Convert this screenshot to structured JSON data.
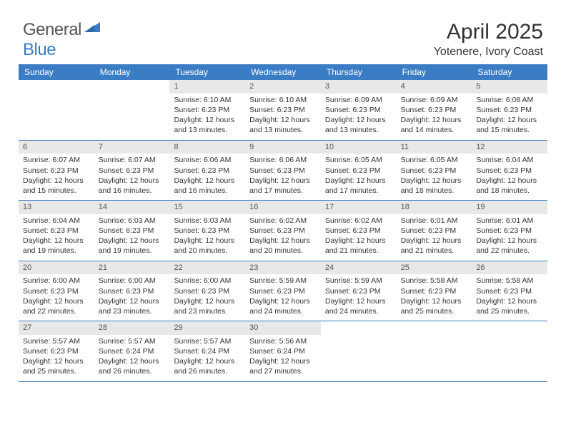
{
  "logo": {
    "general": "General",
    "blue": "Blue"
  },
  "title": "April 2025",
  "location": "Yotenere, Ivory Coast",
  "colors": {
    "header_bar": "#3b7dc4",
    "daynum_bg": "#e8e8e8",
    "text": "#333333",
    "white": "#ffffff"
  },
  "weekdays": [
    "Sunday",
    "Monday",
    "Tuesday",
    "Wednesday",
    "Thursday",
    "Friday",
    "Saturday"
  ],
  "weeks": [
    [
      {
        "n": "",
        "sr": "",
        "ss": "",
        "dl": ""
      },
      {
        "n": "",
        "sr": "",
        "ss": "",
        "dl": ""
      },
      {
        "n": "1",
        "sr": "Sunrise: 6:10 AM",
        "ss": "Sunset: 6:23 PM",
        "dl": "Daylight: 12 hours and 13 minutes."
      },
      {
        "n": "2",
        "sr": "Sunrise: 6:10 AM",
        "ss": "Sunset: 6:23 PM",
        "dl": "Daylight: 12 hours and 13 minutes."
      },
      {
        "n": "3",
        "sr": "Sunrise: 6:09 AM",
        "ss": "Sunset: 6:23 PM",
        "dl": "Daylight: 12 hours and 13 minutes."
      },
      {
        "n": "4",
        "sr": "Sunrise: 6:09 AM",
        "ss": "Sunset: 6:23 PM",
        "dl": "Daylight: 12 hours and 14 minutes."
      },
      {
        "n": "5",
        "sr": "Sunrise: 6:08 AM",
        "ss": "Sunset: 6:23 PM",
        "dl": "Daylight: 12 hours and 15 minutes."
      }
    ],
    [
      {
        "n": "6",
        "sr": "Sunrise: 6:07 AM",
        "ss": "Sunset: 6:23 PM",
        "dl": "Daylight: 12 hours and 15 minutes."
      },
      {
        "n": "7",
        "sr": "Sunrise: 6:07 AM",
        "ss": "Sunset: 6:23 PM",
        "dl": "Daylight: 12 hours and 16 minutes."
      },
      {
        "n": "8",
        "sr": "Sunrise: 6:06 AM",
        "ss": "Sunset: 6:23 PM",
        "dl": "Daylight: 12 hours and 16 minutes."
      },
      {
        "n": "9",
        "sr": "Sunrise: 6:06 AM",
        "ss": "Sunset: 6:23 PM",
        "dl": "Daylight: 12 hours and 17 minutes."
      },
      {
        "n": "10",
        "sr": "Sunrise: 6:05 AM",
        "ss": "Sunset: 6:23 PM",
        "dl": "Daylight: 12 hours and 17 minutes."
      },
      {
        "n": "11",
        "sr": "Sunrise: 6:05 AM",
        "ss": "Sunset: 6:23 PM",
        "dl": "Daylight: 12 hours and 18 minutes."
      },
      {
        "n": "12",
        "sr": "Sunrise: 6:04 AM",
        "ss": "Sunset: 6:23 PM",
        "dl": "Daylight: 12 hours and 18 minutes."
      }
    ],
    [
      {
        "n": "13",
        "sr": "Sunrise: 6:04 AM",
        "ss": "Sunset: 6:23 PM",
        "dl": "Daylight: 12 hours and 19 minutes."
      },
      {
        "n": "14",
        "sr": "Sunrise: 6:03 AM",
        "ss": "Sunset: 6:23 PM",
        "dl": "Daylight: 12 hours and 19 minutes."
      },
      {
        "n": "15",
        "sr": "Sunrise: 6:03 AM",
        "ss": "Sunset: 6:23 PM",
        "dl": "Daylight: 12 hours and 20 minutes."
      },
      {
        "n": "16",
        "sr": "Sunrise: 6:02 AM",
        "ss": "Sunset: 6:23 PM",
        "dl": "Daylight: 12 hours and 20 minutes."
      },
      {
        "n": "17",
        "sr": "Sunrise: 6:02 AM",
        "ss": "Sunset: 6:23 PM",
        "dl": "Daylight: 12 hours and 21 minutes."
      },
      {
        "n": "18",
        "sr": "Sunrise: 6:01 AM",
        "ss": "Sunset: 6:23 PM",
        "dl": "Daylight: 12 hours and 21 minutes."
      },
      {
        "n": "19",
        "sr": "Sunrise: 6:01 AM",
        "ss": "Sunset: 6:23 PM",
        "dl": "Daylight: 12 hours and 22 minutes."
      }
    ],
    [
      {
        "n": "20",
        "sr": "Sunrise: 6:00 AM",
        "ss": "Sunset: 6:23 PM",
        "dl": "Daylight: 12 hours and 22 minutes."
      },
      {
        "n": "21",
        "sr": "Sunrise: 6:00 AM",
        "ss": "Sunset: 6:23 PM",
        "dl": "Daylight: 12 hours and 23 minutes."
      },
      {
        "n": "22",
        "sr": "Sunrise: 6:00 AM",
        "ss": "Sunset: 6:23 PM",
        "dl": "Daylight: 12 hours and 23 minutes."
      },
      {
        "n": "23",
        "sr": "Sunrise: 5:59 AM",
        "ss": "Sunset: 6:23 PM",
        "dl": "Daylight: 12 hours and 24 minutes."
      },
      {
        "n": "24",
        "sr": "Sunrise: 5:59 AM",
        "ss": "Sunset: 6:23 PM",
        "dl": "Daylight: 12 hours and 24 minutes."
      },
      {
        "n": "25",
        "sr": "Sunrise: 5:58 AM",
        "ss": "Sunset: 6:23 PM",
        "dl": "Daylight: 12 hours and 25 minutes."
      },
      {
        "n": "26",
        "sr": "Sunrise: 5:58 AM",
        "ss": "Sunset: 6:23 PM",
        "dl": "Daylight: 12 hours and 25 minutes."
      }
    ],
    [
      {
        "n": "27",
        "sr": "Sunrise: 5:57 AM",
        "ss": "Sunset: 6:23 PM",
        "dl": "Daylight: 12 hours and 25 minutes."
      },
      {
        "n": "28",
        "sr": "Sunrise: 5:57 AM",
        "ss": "Sunset: 6:24 PM",
        "dl": "Daylight: 12 hours and 26 minutes."
      },
      {
        "n": "29",
        "sr": "Sunrise: 5:57 AM",
        "ss": "Sunset: 6:24 PM",
        "dl": "Daylight: 12 hours and 26 minutes."
      },
      {
        "n": "30",
        "sr": "Sunrise: 5:56 AM",
        "ss": "Sunset: 6:24 PM",
        "dl": "Daylight: 12 hours and 27 minutes."
      },
      {
        "n": "",
        "sr": "",
        "ss": "",
        "dl": ""
      },
      {
        "n": "",
        "sr": "",
        "ss": "",
        "dl": ""
      },
      {
        "n": "",
        "sr": "",
        "ss": "",
        "dl": ""
      }
    ]
  ]
}
